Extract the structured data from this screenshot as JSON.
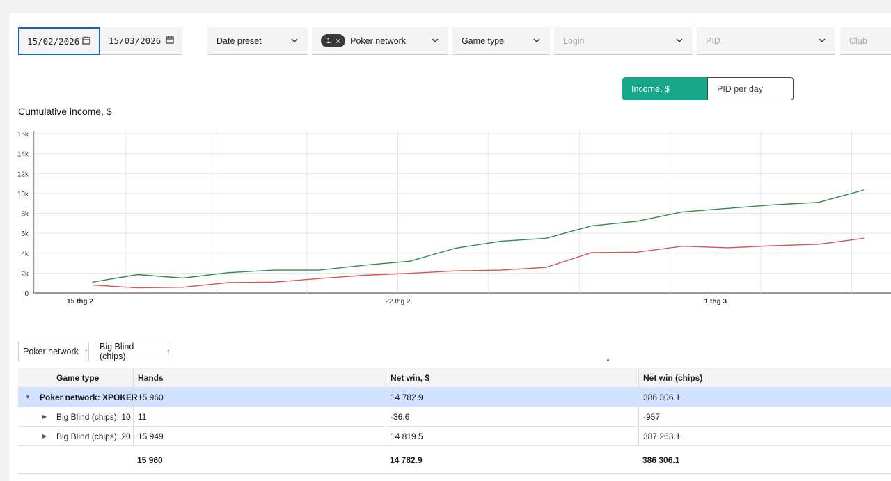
{
  "filters": {
    "date_from": "15/02/2026",
    "date_to": "15/03/2026",
    "date_preset": "Date preset",
    "poker_network": {
      "tag_count": "1",
      "label": "Poker network"
    },
    "game_type": "Game type",
    "login": "Login",
    "pid": "PID",
    "club": "Club"
  },
  "toggle": {
    "active": "Income, $",
    "inactive": "PID per day"
  },
  "chart_title": "Cumulative income, $",
  "chart_data": {
    "type": "line",
    "title": "Cumulative income, $",
    "ylim": [
      0,
      16000
    ],
    "yticks": [
      "0",
      "2k",
      "4k",
      "6k",
      "8k",
      "10k",
      "12k",
      "14k",
      "16k"
    ],
    "xticks": [
      {
        "label": "15 thg 2",
        "day": 0,
        "bold": true
      },
      {
        "label": "22 thg 2",
        "day": 7,
        "bold": false
      },
      {
        "label": "1 thg 3",
        "day": 14,
        "bold": true
      }
    ],
    "x_days": [
      0.27,
      1.27,
      2.27,
      3.27,
      4.27,
      5.27,
      6.27,
      7.27,
      8.27,
      9.27,
      10.27,
      11.27,
      12.27,
      13.27,
      14.27,
      15.27,
      16.27,
      17.27
    ],
    "grid": true,
    "series": [
      {
        "color": "#2e8b4e",
        "values": [
          1100,
          1850,
          1500,
          2050,
          2300,
          2300,
          2800,
          3200,
          4500,
          5200,
          5500,
          6750,
          7200,
          8150,
          8500,
          8850,
          9100,
          10350
        ]
      },
      {
        "color": "#d9534f",
        "values": [
          800,
          520,
          580,
          1050,
          1100,
          1450,
          1780,
          1980,
          2220,
          2300,
          2580,
          4050,
          4100,
          4700,
          4550,
          4750,
          4900,
          5500
        ]
      }
    ]
  },
  "grouping": [
    {
      "label": "Poker network",
      "arrow": "↑"
    },
    {
      "label": "Big Blind (chips)",
      "arrow": "↑"
    }
  ],
  "table": {
    "columns": [
      "Game type",
      "Hands",
      "Net win, $",
      "Net win (chips)"
    ],
    "group_row": {
      "label": "Poker network: XPOKER",
      "hands": "15 960",
      "net_win_usd": "14 782.9",
      "net_win_chips": "386 306.1"
    },
    "sub_rows": [
      {
        "label": "Big Blind (chips): 10",
        "hands": "11",
        "net_win_usd": "-36.6",
        "net_win_chips": "-957"
      },
      {
        "label": "Big Blind (chips): 20",
        "hands": "15 949",
        "net_win_usd": "14 819.5",
        "net_win_chips": "387 263.1"
      }
    ],
    "total_row": {
      "hands": "15 960",
      "net_win_usd": "14 782.9",
      "net_win_chips": "386 306.1"
    }
  }
}
